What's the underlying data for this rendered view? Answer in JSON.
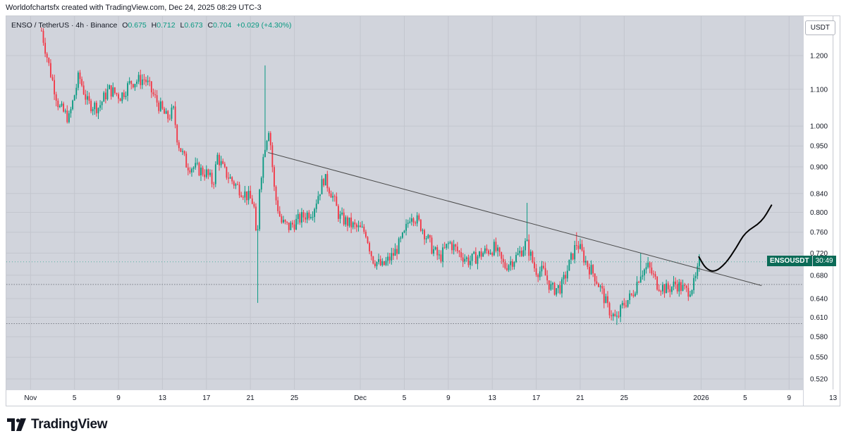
{
  "header": "Worldofchartsfx created with TradingView.com, Dec 24, 2025 08:29 UTC-3",
  "legend": {
    "symbol": "ENSO / TetherUS · 4h · Binance",
    "open_label": "O",
    "open": "0.675",
    "high_label": "H",
    "high": "0.712",
    "low_label": "L",
    "low": "0.673",
    "close_label": "C",
    "close": "0.704",
    "change": "+0.029 (+4.30%)"
  },
  "currency_button": "USDT",
  "price_badge": {
    "symbol": "ENSOUSDT",
    "timer": "30:49"
  },
  "footer": {
    "brand": "TradingView"
  },
  "colors": {
    "up": "#089981",
    "down": "#f23645",
    "background": "#d1d4dc",
    "trendline": "#4a4a4a",
    "drawing": "#000000"
  },
  "chart_data": {
    "type": "candlestick",
    "timeframe": "4h",
    "y_scale": "log",
    "y_range": [
      0.5,
      1.29
    ],
    "y_ticks": [
      "1.200",
      "1.100",
      "1.000",
      "0.950",
      "0.900",
      "0.840",
      "0.800",
      "0.760",
      "0.720",
      "0.680",
      "0.640",
      "0.610",
      "0.580",
      "0.550",
      "0.520"
    ],
    "x_ticks": [
      "Nov",
      "5",
      "9",
      "13",
      "17",
      "21",
      "25",
      "Dec",
      "5",
      "9",
      "13",
      "17",
      "21",
      "25",
      "2026",
      "5",
      "9",
      "13"
    ],
    "x_range_days": [
      -2.2,
      73.6
    ],
    "grid": true,
    "close_path": [
      {
        "d": 1.0,
        "p": 1.28
      },
      {
        "d": 1.8,
        "p": 1.15
      },
      {
        "d": 2.6,
        "p": 1.05
      },
      {
        "d": 3.5,
        "p": 1.02
      },
      {
        "d": 4.4,
        "p": 1.14
      },
      {
        "d": 5.2,
        "p": 1.06
      },
      {
        "d": 6.2,
        "p": 1.05
      },
      {
        "d": 7.1,
        "p": 1.1
      },
      {
        "d": 8.2,
        "p": 1.08
      },
      {
        "d": 9.1,
        "p": 1.12
      },
      {
        "d": 10.4,
        "p": 1.13
      },
      {
        "d": 11.4,
        "p": 1.07
      },
      {
        "d": 12.4,
        "p": 1.02
      },
      {
        "d": 13.0,
        "p": 1.04
      },
      {
        "d": 13.4,
        "p": 0.96
      },
      {
        "d": 14.2,
        "p": 0.905
      },
      {
        "d": 15.2,
        "p": 0.895
      },
      {
        "d": 16.0,
        "p": 0.885
      },
      {
        "d": 16.6,
        "p": 0.862
      },
      {
        "d": 17.0,
        "p": 0.925
      },
      {
        "d": 17.6,
        "p": 0.89
      },
      {
        "d": 18.6,
        "p": 0.86
      },
      {
        "d": 19.4,
        "p": 0.842
      },
      {
        "d": 20.3,
        "p": 0.82
      },
      {
        "d": 20.6,
        "p": 0.72
      },
      {
        "d": 20.8,
        "p": 0.85
      },
      {
        "d": 21.3,
        "p": 0.95
      },
      {
        "d": 21.7,
        "p": 1.0
      },
      {
        "d": 22.2,
        "p": 0.84
      },
      {
        "d": 22.8,
        "p": 0.78
      },
      {
        "d": 23.5,
        "p": 0.77
      },
      {
        "d": 24.7,
        "p": 0.79
      },
      {
        "d": 25.7,
        "p": 0.805
      },
      {
        "d": 26.2,
        "p": 0.84
      },
      {
        "d": 26.7,
        "p": 0.875
      },
      {
        "d": 27.4,
        "p": 0.84
      },
      {
        "d": 28.1,
        "p": 0.79
      },
      {
        "d": 29.5,
        "p": 0.77
      },
      {
        "d": 30.5,
        "p": 0.76
      },
      {
        "d": 31.1,
        "p": 0.71
      },
      {
        "d": 32.0,
        "p": 0.695
      },
      {
        "d": 33.1,
        "p": 0.72
      },
      {
        "d": 34.0,
        "p": 0.755
      },
      {
        "d": 34.6,
        "p": 0.8
      },
      {
        "d": 35.6,
        "p": 0.77
      },
      {
        "d": 36.5,
        "p": 0.73
      },
      {
        "d": 37.2,
        "p": 0.71
      },
      {
        "d": 38.1,
        "p": 0.74
      },
      {
        "d": 39.0,
        "p": 0.72
      },
      {
        "d": 39.9,
        "p": 0.705
      },
      {
        "d": 41.1,
        "p": 0.72
      },
      {
        "d": 42.2,
        "p": 0.73
      },
      {
        "d": 43.1,
        "p": 0.695
      },
      {
        "d": 44.3,
        "p": 0.715
      },
      {
        "d": 45.1,
        "p": 0.74
      },
      {
        "d": 45.9,
        "p": 0.69
      },
      {
        "d": 46.7,
        "p": 0.685
      },
      {
        "d": 47.4,
        "p": 0.655
      },
      {
        "d": 48.3,
        "p": 0.66
      },
      {
        "d": 49.1,
        "p": 0.705
      },
      {
        "d": 49.7,
        "p": 0.74
      },
      {
        "d": 50.6,
        "p": 0.7
      },
      {
        "d": 51.3,
        "p": 0.68
      },
      {
        "d": 52.0,
        "p": 0.65
      },
      {
        "d": 52.5,
        "p": 0.625
      },
      {
        "d": 53.3,
        "p": 0.605
      },
      {
        "d": 53.9,
        "p": 0.63
      },
      {
        "d": 54.7,
        "p": 0.645
      },
      {
        "d": 55.5,
        "p": 0.685
      },
      {
        "d": 56.2,
        "p": 0.695
      },
      {
        "d": 57.0,
        "p": 0.665
      },
      {
        "d": 57.9,
        "p": 0.655
      },
      {
        "d": 58.7,
        "p": 0.665
      },
      {
        "d": 59.7,
        "p": 0.652
      },
      {
        "d": 60.4,
        "p": 0.665
      },
      {
        "d": 60.9,
        "p": 0.705
      }
    ],
    "trendline": [
      {
        "d": 21.6,
        "p": 0.934
      },
      {
        "d": 66.5,
        "p": 0.662
      }
    ],
    "projection_drawing": [
      {
        "d": 60.8,
        "p": 0.713
      },
      {
        "d": 61.4,
        "p": 0.692
      },
      {
        "d": 62.2,
        "p": 0.685
      },
      {
        "d": 63.2,
        "p": 0.7
      },
      {
        "d": 64.2,
        "p": 0.73
      },
      {
        "d": 65.0,
        "p": 0.76
      },
      {
        "d": 66.5,
        "p": 0.78
      },
      {
        "d": 67.4,
        "p": 0.815
      }
    ],
    "dotted_levels": [
      0.664,
      0.6
    ],
    "last_price": 0.704
  }
}
